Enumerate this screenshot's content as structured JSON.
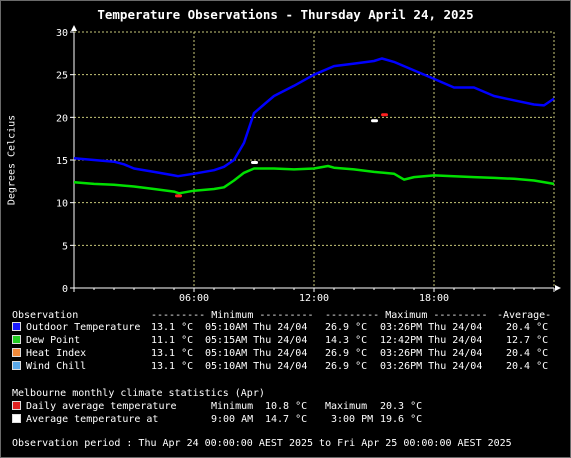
{
  "title": "Temperature Observations - Thursday April 24, 2025",
  "chart_data": {
    "type": "line",
    "title": "Temperature Observations - Thursday April 24, 2025",
    "xlabel": "",
    "ylabel": "Degrees Celcius",
    "xlim": [
      "00:00",
      "24:00"
    ],
    "ylim": [
      0,
      30
    ],
    "y_ticks": [
      0,
      5,
      10,
      15,
      20,
      25,
      30
    ],
    "x_tick_labels": [
      "06:00",
      "12:00",
      "18:00"
    ],
    "x_tick_hours": [
      6,
      12,
      18
    ],
    "grid": true,
    "x_unit": "hours",
    "series": [
      {
        "name": "Outdoor Temperature",
        "color": "#0000ff",
        "x": [
          0,
          1,
          2,
          2.5,
          3,
          4,
          5,
          5.2,
          6,
          7,
          7.5,
          8,
          8.5,
          9,
          9.5,
          10,
          11,
          12,
          13,
          14,
          15,
          15.4,
          16,
          17,
          18,
          19,
          20,
          21,
          22,
          23,
          23.5,
          24
        ],
        "values": [
          15.2,
          15.0,
          14.8,
          14.5,
          14.0,
          13.6,
          13.2,
          13.1,
          13.4,
          13.8,
          14.2,
          15.0,
          17.0,
          20.5,
          21.5,
          22.5,
          23.7,
          25.0,
          26.0,
          26.3,
          26.6,
          26.9,
          26.5,
          25.5,
          24.5,
          23.5,
          23.5,
          22.5,
          22.0,
          21.5,
          21.4,
          22.2
        ]
      },
      {
        "name": "Dew Point",
        "color": "#00e000",
        "x": [
          0,
          1,
          2,
          3,
          4,
          5,
          5.25,
          6,
          7,
          7.5,
          8,
          8.5,
          9,
          10,
          11,
          12,
          12.7,
          13,
          14,
          15,
          16,
          16.5,
          17,
          18,
          19,
          20,
          21,
          22,
          23,
          24
        ],
        "values": [
          12.4,
          12.2,
          12.1,
          11.9,
          11.6,
          11.3,
          11.1,
          11.4,
          11.6,
          11.8,
          12.6,
          13.5,
          14.0,
          14.0,
          13.9,
          14.0,
          14.3,
          14.1,
          13.9,
          13.6,
          13.4,
          12.7,
          13.0,
          13.2,
          13.1,
          13.0,
          12.9,
          12.8,
          12.6,
          12.2
        ]
      }
    ],
    "markers": [
      {
        "name": "Daily average temperature minimum",
        "color": "#ff2020",
        "hour": 5.2,
        "value": 10.8
      },
      {
        "name": "Daily average temperature maximum",
        "color": "#ff2020",
        "hour": 15.5,
        "value": 20.3
      },
      {
        "name": "Average temperature at 9:00 AM",
        "color": "#ffffff",
        "hour": 9,
        "value": 14.7
      },
      {
        "name": "Average temperature at 3:00 PM",
        "color": "#ffffff",
        "hour": 15,
        "value": 19.6
      }
    ]
  },
  "obs_table": {
    "header": {
      "observation": "Observation",
      "minimum": "--------- Minimum ---------",
      "maximum": "--------- Maximum ---------",
      "average": "-Average-"
    },
    "rows": [
      {
        "label": "Outdoor Temperature",
        "color": "#1a1aff",
        "min_value": "13.1 °C",
        "min_time": "05:10AM Thu 24/04",
        "max_value": "26.9 °C",
        "max_time": "03:26PM Thu 24/04",
        "average": "20.4 °C"
      },
      {
        "label": "Dew Point",
        "color": "#22cc22",
        "min_value": "11.1 °C",
        "min_time": "05:15AM Thu 24/04",
        "max_value": "14.3 °C",
        "max_time": "12:42PM Thu 24/04",
        "average": "12.7 °C"
      },
      {
        "label": "Heat Index",
        "color": "#f08a3a",
        "min_value": "13.1 °C",
        "min_time": "05:10AM Thu 24/04",
        "max_value": "26.9 °C",
        "max_time": "03:26PM Thu 24/04",
        "average": "20.4 °C"
      },
      {
        "label": "Wind Chill",
        "color": "#5aa8e8",
        "min_value": "13.1 °C",
        "min_time": "05:10AM Thu 24/04",
        "max_value": "26.9 °C",
        "max_time": "03:26PM Thu 24/04",
        "average": "20.4 °C"
      }
    ]
  },
  "climate": {
    "title": "Melbourne monthly climate statistics (Apr)",
    "rows": [
      {
        "label": "Daily average temperature",
        "color": "#e02020",
        "left_label": "Minimum",
        "left_value": "10.8 °C",
        "right_label": "Maximum",
        "right_value": "20.3 °C"
      },
      {
        "label": "Average temperature at",
        "color": "#ffffff",
        "left_label": "9:00 AM",
        "left_value": "14.7 °C",
        "right_label": "3:00 PM",
        "right_value": "19.6 °C"
      }
    ]
  },
  "footer": "Observation period : Thu Apr 24 00:00:00 AEST 2025 to Fri Apr 25 00:00:00 AEST 2025"
}
